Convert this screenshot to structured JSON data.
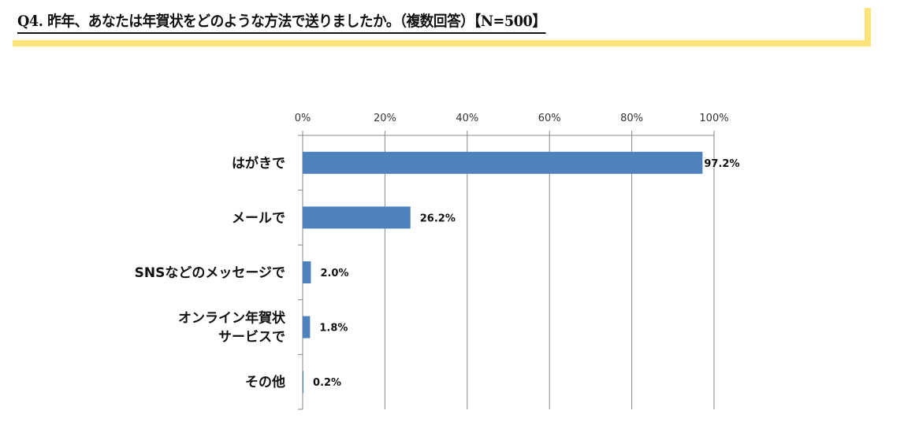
{
  "title": "Q4. 昨年、あなたは年賀状をどのような方法で送りましたか。（複数回答）【N=500】",
  "colors": {
    "bar": "#4f81bd",
    "highlight": "#fde37a"
  },
  "chart_data": {
    "type": "bar",
    "orientation": "horizontal",
    "title": "Q4. 昨年、あなたは年賀状をどのような方法で送りましたか。（複数回答）【N=500】",
    "categories": [
      [
        "はがきで"
      ],
      [
        "メールで"
      ],
      [
        "SNSなどのメッセージで"
      ],
      [
        "オンライン年賀状",
        "サービスで"
      ],
      [
        "その他"
      ]
    ],
    "values": [
      97.2,
      26.2,
      2.0,
      1.8,
      0.2
    ],
    "data_labels": [
      "97.2%",
      "26.2%",
      "2.0%",
      "1.8%",
      "0.2%"
    ],
    "xlim": [
      0,
      100
    ],
    "xticks": [
      "0%",
      "20%",
      "40%",
      "60%",
      "80%",
      "100%"
    ],
    "xaxis_position": "top",
    "grid": true,
    "legend": "none"
  }
}
